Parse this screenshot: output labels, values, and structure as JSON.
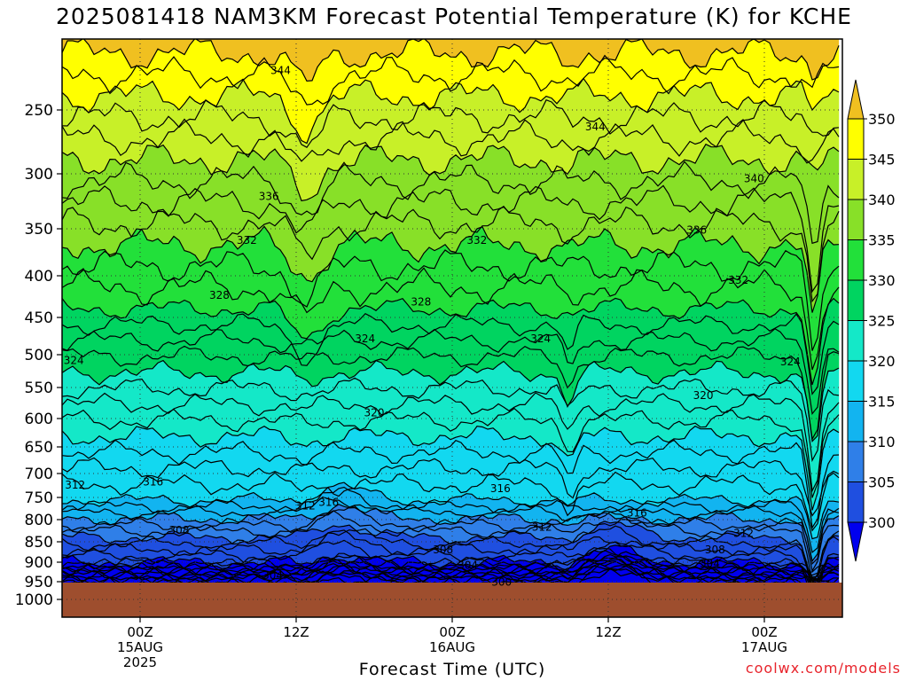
{
  "chart_data": {
    "type": "heatmap",
    "title": "2025081418 NAM3KM Forecast Potential Temperature (K) for KCHE",
    "xlabel": "Forecast Time (UTC)",
    "y_axis": {
      "label": "",
      "reversed": true,
      "ylim": [
        1030,
        200
      ],
      "ticks": [
        "250",
        "300",
        "350",
        "400",
        "450",
        "500",
        "550",
        "600",
        "650",
        "700",
        "750",
        "800",
        "850",
        "900",
        "950",
        "1000"
      ]
    },
    "x_axis": {
      "ticks": [
        {
          "hour": 6,
          "line1": "00Z",
          "line2": "15AUG",
          "line3": "2025"
        },
        {
          "hour": 18,
          "line1": "12Z",
          "line2": "",
          "line3": ""
        },
        {
          "hour": 30,
          "line1": "00Z",
          "line2": "16AUG",
          "line3": ""
        },
        {
          "hour": 42,
          "line1": "12Z",
          "line2": "",
          "line3": ""
        },
        {
          "hour": 54,
          "line1": "00Z",
          "line2": "17AUG",
          "line3": ""
        }
      ],
      "xlim": [
        0,
        60
      ]
    },
    "grid": true,
    "colorbar": {
      "levels": [
        300,
        305,
        310,
        315,
        320,
        325,
        330,
        335,
        340,
        345,
        350
      ],
      "labels": [
        "300",
        "305",
        "310",
        "315",
        "320",
        "325",
        "330",
        "335",
        "340",
        "345",
        "350"
      ],
      "colors": [
        "#0000ee",
        "#1f4fe0",
        "#2f7fe8",
        "#12b4f0",
        "#12d8f0",
        "#14e8c8",
        "#00d460",
        "#22e03a",
        "#88e028",
        "#c8f028",
        "#ffff00",
        "#f0c020"
      ]
    },
    "surface_color": "#9e4e2e",
    "contour_labels": [
      {
        "value": "344",
        "hour": 16.8,
        "p": 222
      },
      {
        "value": "344",
        "hour": 41.0,
        "p": 263
      },
      {
        "value": "340",
        "hour": 53.2,
        "p": 304
      },
      {
        "value": "336",
        "hour": 15.9,
        "p": 320
      },
      {
        "value": "336",
        "hour": 48.8,
        "p": 351
      },
      {
        "value": "332",
        "hour": 14.2,
        "p": 362
      },
      {
        "value": "332",
        "hour": 31.9,
        "p": 362
      },
      {
        "value": "332",
        "hour": 52.0,
        "p": 405
      },
      {
        "value": "328",
        "hour": 12.1,
        "p": 423
      },
      {
        "value": "328",
        "hour": 27.6,
        "p": 431
      },
      {
        "value": "324",
        "hour": 23.3,
        "p": 478
      },
      {
        "value": "324",
        "hour": 36.8,
        "p": 478
      },
      {
        "value": "324",
        "hour": 0.9,
        "p": 508
      },
      {
        "value": "324",
        "hour": 56.0,
        "p": 510
      },
      {
        "value": "320",
        "hour": 24.0,
        "p": 590
      },
      {
        "value": "320",
        "hour": 49.3,
        "p": 562
      },
      {
        "value": "316",
        "hour": 7.0,
        "p": 717
      },
      {
        "value": "316",
        "hour": 20.5,
        "p": 760
      },
      {
        "value": "316",
        "hour": 33.7,
        "p": 731
      },
      {
        "value": "316",
        "hour": 44.2,
        "p": 784
      },
      {
        "value": "312",
        "hour": 1.0,
        "p": 723
      },
      {
        "value": "312",
        "hour": 18.7,
        "p": 768
      },
      {
        "value": "312",
        "hour": 36.9,
        "p": 816
      },
      {
        "value": "312",
        "hour": 52.4,
        "p": 830
      },
      {
        "value": "308",
        "hour": 9.0,
        "p": 823
      },
      {
        "value": "308",
        "hour": 29.3,
        "p": 868
      },
      {
        "value": "308",
        "hour": 50.2,
        "p": 868
      },
      {
        "value": "304",
        "hour": 16.2,
        "p": 933
      },
      {
        "value": "304",
        "hour": 31.2,
        "p": 907
      },
      {
        "value": "304",
        "hour": 49.8,
        "p": 902
      },
      {
        "value": "300",
        "hour": 33.8,
        "p": 950
      }
    ]
  },
  "credit": "coolwx.com/models"
}
